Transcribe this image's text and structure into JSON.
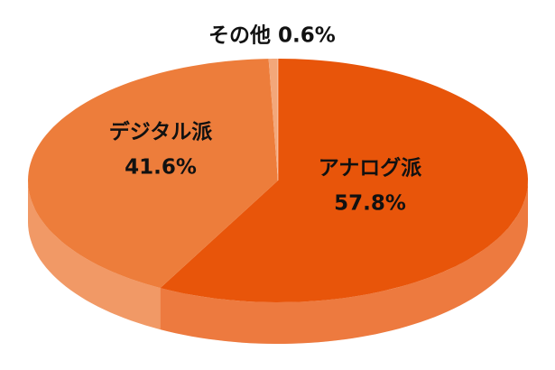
{
  "chart_data": {
    "type": "pie3d",
    "categories": [
      "アナログ派",
      "デジタル派",
      "その他"
    ],
    "values": [
      57.8,
      41.6,
      0.6
    ],
    "value_labels": [
      "57.8%",
      "41.6%",
      "0.6%"
    ],
    "colors": [
      "#e8550a",
      "#ed7d3b",
      "#f3a77a"
    ]
  }
}
